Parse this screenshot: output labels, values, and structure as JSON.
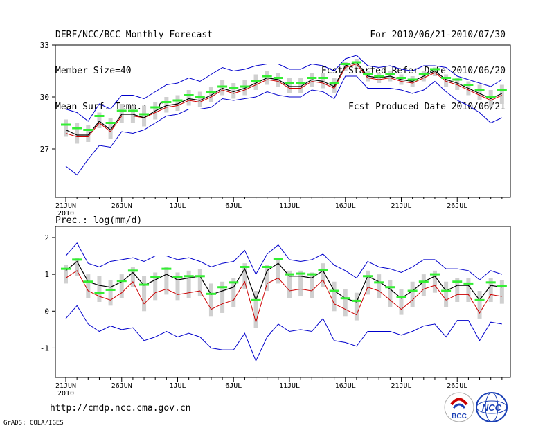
{
  "header": {
    "left": [
      "DERF/NCC/BCC Monthly Forecast",
      "Member Size=40",
      "Mean Surf. Temp.: °C"
    ],
    "right": [
      "For 2010/06/21-2010/07/30",
      "Fcst Started Refer Date 2010/06/20",
      "Fcst Produced Date 2010/06/21"
    ]
  },
  "footer": {
    "url": "http://cmdp.ncc.cma.gov.cn",
    "credit": "GrADS: COLA/IGES"
  },
  "logos": {
    "bcc_text": "BCC",
    "ncc_text": "NCC"
  },
  "colors": {
    "mean": "#000000",
    "median": "#cc0000",
    "envelope": "#0000cc",
    "iqr": "#d0d0d0",
    "obs": "#33ee33"
  },
  "chart_data": [
    {
      "type": "line",
      "title": "Mean Surf. Temp.: °C",
      "x_start_day": 0,
      "x_tick_labels": [
        "21JUN",
        "26JUN",
        "1JUL",
        "6JUL",
        "11JUL",
        "16JUL",
        "21JUL",
        "26JUL"
      ],
      "x_year_label": "2010",
      "ylim": [
        24.2,
        33
      ],
      "yticks": [
        27,
        30,
        33
      ],
      "series": [
        {
          "name": "ensemble mean",
          "values": [
            28.1,
            27.8,
            27.8,
            28.6,
            28.1,
            29.0,
            29.0,
            28.8,
            29.2,
            29.5,
            29.6,
            29.9,
            29.8,
            30.1,
            30.5,
            30.3,
            30.5,
            30.8,
            31.1,
            31.0,
            30.6,
            30.6,
            31.0,
            30.9,
            30.6,
            31.8,
            32.0,
            31.2,
            31.1,
            31.2,
            31.0,
            30.9,
            31.2,
            31.5,
            31.0,
            30.8,
            30.5,
            30.2,
            29.9,
            30.2
          ]
        },
        {
          "name": "median",
          "values": [
            27.9,
            27.7,
            27.7,
            28.5,
            28.0,
            28.9,
            28.9,
            28.8,
            29.1,
            29.4,
            29.5,
            29.8,
            29.7,
            30.0,
            30.4,
            30.2,
            30.4,
            30.7,
            31.0,
            30.9,
            30.5,
            30.5,
            30.9,
            30.8,
            30.5,
            31.7,
            31.9,
            31.1,
            31.0,
            31.1,
            30.9,
            30.8,
            31.1,
            31.4,
            30.9,
            30.7,
            30.4,
            30.1,
            29.8,
            30.1
          ]
        },
        {
          "name": "max",
          "values": [
            29.3,
            29.1,
            28.6,
            29.6,
            29.3,
            30.1,
            30.1,
            29.9,
            30.3,
            30.7,
            30.8,
            31.1,
            30.9,
            31.3,
            31.7,
            31.5,
            31.6,
            31.8,
            31.9,
            31.9,
            31.6,
            31.6,
            31.9,
            31.8,
            31.5,
            32.2,
            32.4,
            31.8,
            31.7,
            31.8,
            31.6,
            31.5,
            31.8,
            31.8,
            31.7,
            31.2,
            31.0,
            30.8,
            30.6,
            31.0
          ]
        },
        {
          "name": "min",
          "values": [
            26.0,
            25.5,
            26.4,
            27.2,
            27.1,
            28.0,
            27.9,
            28.1,
            28.5,
            28.9,
            29.0,
            29.3,
            29.3,
            29.4,
            29.9,
            29.8,
            29.9,
            30.0,
            30.3,
            30.1,
            30.0,
            30.0,
            30.4,
            30.3,
            29.9,
            31.2,
            31.2,
            30.5,
            30.5,
            30.5,
            30.4,
            30.2,
            30.4,
            30.9,
            30.3,
            29.8,
            29.5,
            29.1,
            28.5,
            28.8
          ]
        },
        {
          "name": "q75",
          "values": [
            28.7,
            28.5,
            28.4,
            29.1,
            28.8,
            29.6,
            29.5,
            29.5,
            29.7,
            30.0,
            30.1,
            30.4,
            30.3,
            30.6,
            31.0,
            30.8,
            31.0,
            31.3,
            31.5,
            31.4,
            31.1,
            31.1,
            31.4,
            31.4,
            31.1,
            32.0,
            32.2,
            31.5,
            31.4,
            31.5,
            31.3,
            31.2,
            31.5,
            31.7,
            31.3,
            31.1,
            30.9,
            30.7,
            30.4,
            30.7
          ]
        },
        {
          "name": "q25",
          "values": [
            27.7,
            27.3,
            27.4,
            28.2,
            27.6,
            28.5,
            28.5,
            28.3,
            28.7,
            29.1,
            29.2,
            29.5,
            29.4,
            29.7,
            30.1,
            29.9,
            30.1,
            30.4,
            30.7,
            30.6,
            30.2,
            30.2,
            30.6,
            30.5,
            30.2,
            31.5,
            31.7,
            30.9,
            30.8,
            30.9,
            30.7,
            30.6,
            30.9,
            31.2,
            30.6,
            30.4,
            30.1,
            29.8,
            29.4,
            29.6
          ]
        },
        {
          "name": "observed",
          "values": [
            28.4,
            28.2,
            28.1,
            28.9,
            28.5,
            29.2,
            29.2,
            29.0,
            29.4,
            29.7,
            29.8,
            30.1,
            30.0,
            30.3,
            30.6,
            30.5,
            30.6,
            30.9,
            31.2,
            31.1,
            30.8,
            30.8,
            31.1,
            31.1,
            30.8,
            31.9,
            32.0,
            31.3,
            31.2,
            31.3,
            31.1,
            31.0,
            31.3,
            31.6,
            31.1,
            31.0,
            30.7,
            30.4,
            30.0,
            30.4
          ]
        }
      ]
    },
    {
      "type": "line",
      "title": "Prec.: log(mm/d)",
      "x_start_day": 0,
      "x_tick_labels": [
        "21JUN",
        "26JUN",
        "1JUL",
        "6JUL",
        "11JUL",
        "16JUL",
        "21JUL",
        "26JUL"
      ],
      "x_year_label": "2010",
      "ylim": [
        -1.8,
        2.3
      ],
      "yticks": [
        -1,
        0,
        1,
        2
      ],
      "series": [
        {
          "name": "ensemble mean",
          "values": [
            1.1,
            1.35,
            0.8,
            0.7,
            0.65,
            0.8,
            1.05,
            0.7,
            0.85,
            1.0,
            0.85,
            0.9,
            0.95,
            0.45,
            0.55,
            0.65,
            1.15,
            0.3,
            1.1,
            1.3,
            0.95,
            0.95,
            0.9,
            1.1,
            0.55,
            0.35,
            0.25,
            0.95,
            0.8,
            0.6,
            0.35,
            0.55,
            0.8,
            0.95,
            0.55,
            0.7,
            0.7,
            0.3,
            0.7,
            0.65
          ]
        },
        {
          "name": "median",
          "values": [
            0.9,
            1.1,
            0.55,
            0.4,
            0.3,
            0.5,
            0.8,
            0.2,
            0.5,
            0.6,
            0.45,
            0.5,
            0.55,
            0.05,
            0.2,
            0.3,
            0.8,
            -0.3,
            0.75,
            0.9,
            0.55,
            0.6,
            0.55,
            0.85,
            0.2,
            0.05,
            -0.1,
            0.65,
            0.55,
            0.3,
            0.05,
            0.3,
            0.6,
            0.7,
            0.3,
            0.45,
            0.45,
            -0.05,
            0.45,
            0.4
          ]
        },
        {
          "name": "max",
          "values": [
            1.5,
            1.85,
            1.3,
            1.2,
            1.35,
            1.4,
            1.45,
            1.35,
            1.5,
            1.5,
            1.4,
            1.45,
            1.35,
            1.2,
            1.3,
            1.35,
            1.65,
            1.0,
            1.55,
            1.8,
            1.4,
            1.35,
            1.4,
            1.55,
            1.25,
            1.1,
            0.9,
            1.35,
            1.2,
            1.15,
            1.05,
            1.2,
            1.4,
            1.4,
            1.15,
            1.15,
            1.1,
            0.85,
            1.1,
            1.0
          ]
        },
        {
          "name": "min",
          "values": [
            -0.2,
            0.15,
            -0.35,
            -0.55,
            -0.4,
            -0.5,
            -0.45,
            -0.8,
            -0.7,
            -0.55,
            -0.7,
            -0.6,
            -0.7,
            -1.0,
            -1.05,
            -1.05,
            -0.6,
            -1.35,
            -0.7,
            -0.35,
            -0.55,
            -0.5,
            -0.55,
            -0.2,
            -0.8,
            -0.85,
            -0.95,
            -0.55,
            -0.55,
            -0.55,
            -0.65,
            -0.55,
            -0.4,
            -0.35,
            -0.7,
            -0.25,
            -0.25,
            -0.8,
            -0.3,
            -0.35
          ]
        },
        {
          "name": "q75",
          "values": [
            1.25,
            1.45,
            1.0,
            0.95,
            0.85,
            1.0,
            1.2,
            0.95,
            1.05,
            1.2,
            1.05,
            1.1,
            1.15,
            0.75,
            0.8,
            0.9,
            1.3,
            0.55,
            1.25,
            1.45,
            1.1,
            1.1,
            1.05,
            1.3,
            0.8,
            0.6,
            0.5,
            1.1,
            1.0,
            0.85,
            0.6,
            0.8,
            1.0,
            1.1,
            0.8,
            0.9,
            0.9,
            0.55,
            0.9,
            0.85
          ]
        },
        {
          "name": "q25",
          "values": [
            0.75,
            0.95,
            0.35,
            0.25,
            0.15,
            0.35,
            0.65,
            0.0,
            0.3,
            0.45,
            0.3,
            0.35,
            0.4,
            -0.15,
            -0.05,
            0.1,
            0.6,
            -0.45,
            0.55,
            0.75,
            0.35,
            0.4,
            0.35,
            0.65,
            0.0,
            -0.15,
            -0.25,
            0.45,
            0.35,
            0.1,
            -0.1,
            0.1,
            0.4,
            0.5,
            0.1,
            0.25,
            0.25,
            -0.2,
            0.25,
            0.2
          ]
        },
        {
          "name": "observed",
          "values": [
            1.15,
            1.4,
            0.8,
            0.5,
            0.58,
            0.82,
            1.1,
            0.72,
            0.92,
            1.15,
            0.92,
            0.95,
            0.95,
            0.47,
            0.65,
            0.78,
            1.2,
            0.3,
            1.2,
            1.42,
            1.0,
            1.02,
            1.0,
            1.12,
            0.55,
            0.35,
            0.28,
            0.95,
            0.78,
            0.65,
            0.38,
            0.55,
            0.8,
            1.0,
            0.55,
            0.8,
            0.75,
            0.3,
            0.78,
            0.68
          ]
        }
      ]
    }
  ]
}
